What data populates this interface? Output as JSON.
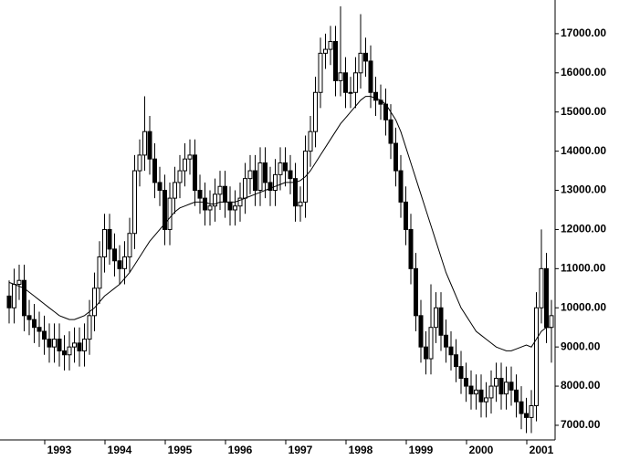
{
  "chart_data": {
    "type": "candlestick",
    "color": "#000000",
    "line_color": "#000000",
    "categories": [
      null,
      null,
      null,
      null,
      null,
      null,
      null,
      null,
      null,
      null,
      "1993",
      null,
      null,
      null,
      null,
      null,
      null,
      null,
      null,
      null,
      null,
      null,
      "1994",
      null,
      null,
      null,
      null,
      null,
      null,
      null,
      null,
      null,
      null,
      null,
      "1995",
      null,
      null,
      null,
      null,
      null,
      null,
      null,
      null,
      null,
      null,
      null,
      "1996",
      null,
      null,
      null,
      null,
      null,
      null,
      null,
      null,
      null,
      null,
      null,
      "1997",
      null,
      null,
      null,
      null,
      null,
      null,
      null,
      null,
      null,
      null,
      null,
      "1998",
      null,
      null,
      null,
      null,
      null,
      null,
      null,
      null,
      null,
      null,
      null,
      "1999",
      null,
      null,
      null,
      null,
      null,
      null,
      null,
      null,
      null,
      null,
      null,
      "2000",
      null,
      null,
      null,
      null,
      null,
      null,
      null,
      null,
      null,
      null,
      null,
      "2001",
      null,
      null
    ],
    "open": [
      10300,
      10000,
      10600,
      10700,
      9800,
      9700,
      9500,
      9400,
      9200,
      9000,
      9200,
      8900,
      8800,
      9000,
      9100,
      8900,
      9200,
      9800,
      10500,
      11300,
      12000,
      11500,
      11200,
      11000,
      11300,
      11900,
      13500,
      13900,
      14500,
      13800,
      13200,
      13000,
      12000,
      12800,
      13200,
      13500,
      13800,
      13900,
      13000,
      12800,
      12500,
      12600,
      12900,
      13100,
      12700,
      12500,
      12600,
      12800,
      13300,
      13500,
      13000,
      13700,
      13200,
      13000,
      13400,
      13700,
      13500,
      13300,
      12600,
      12700,
      14000,
      14500,
      15500,
      16500,
      16600,
      16800,
      15800,
      16000,
      15500,
      15500,
      16000,
      16500,
      16300,
      15500,
      15300,
      15200,
      14800,
      14200,
      13500,
      12700,
      12000,
      11000,
      9800,
      9000,
      8700,
      9500,
      10000,
      9300,
      9000,
      8800,
      8500,
      8200,
      8000,
      7800,
      7900,
      7600,
      7700,
      8000,
      8200,
      7800,
      8100,
      7900,
      7600,
      7300,
      7200,
      7500,
      10000,
      11000,
      9500
    ],
    "high": [
      10700,
      11000,
      11100,
      11100,
      10200,
      10100,
      9900,
      9800,
      9600,
      9600,
      9600,
      9300,
      9400,
      9500,
      9500,
      9600,
      10200,
      10900,
      11700,
      12400,
      12400,
      11900,
      11600,
      11700,
      12300,
      13900,
      14300,
      15400,
      14900,
      14200,
      13600,
      13400,
      13200,
      13600,
      13900,
      14200,
      14300,
      14300,
      13400,
      13200,
      13000,
      13300,
      13500,
      13500,
      13100,
      13000,
      13200,
      13700,
      13900,
      13900,
      14100,
      14100,
      13600,
      13800,
      14100,
      14100,
      13900,
      13700,
      13100,
      14400,
      14900,
      15900,
      16900,
      17000,
      17200,
      17200,
      17700,
      16400,
      15900,
      16400,
      17500,
      16900,
      16700,
      15900,
      15700,
      15600,
      15200,
      14600,
      13900,
      13100,
      12400,
      11400,
      10200,
      9400,
      10600,
      10400,
      10400,
      9700,
      9400,
      9200,
      8900,
      8600,
      8400,
      8300,
      8300,
      8100,
      8400,
      8600,
      8600,
      8500,
      8500,
      8300,
      8000,
      7700,
      7900,
      10400,
      12000,
      11400,
      10200
    ],
    "low": [
      9600,
      9600,
      10200,
      9400,
      9300,
      9100,
      9000,
      8800,
      8600,
      8600,
      8500,
      8400,
      8400,
      8600,
      8500,
      8500,
      8800,
      9400,
      10100,
      10900,
      11100,
      10800,
      10600,
      10600,
      10900,
      11500,
      13100,
      13500,
      13400,
      12800,
      12600,
      11600,
      11600,
      12400,
      12800,
      13100,
      13400,
      12600,
      12400,
      12100,
      12100,
      12200,
      12500,
      12300,
      12100,
      12100,
      12200,
      12400,
      12900,
      12600,
      12600,
      12800,
      12600,
      12600,
      13000,
      13100,
      12900,
      12200,
      12200,
      12300,
      13600,
      14100,
      15100,
      16100,
      16200,
      15400,
      15400,
      15100,
      15100,
      15100,
      15600,
      15900,
      15100,
      14900,
      14800,
      14400,
      13800,
      13100,
      12300,
      11600,
      10600,
      9400,
      8600,
      8300,
      8300,
      9100,
      8900,
      8600,
      8400,
      8100,
      7800,
      7600,
      7400,
      7400,
      7200,
      7200,
      7300,
      7600,
      7400,
      7400,
      7500,
      7200,
      6900,
      6800,
      6800,
      7100,
      9600,
      9100,
      8600
    ],
    "close": [
      10000,
      10600,
      10700,
      9800,
      9700,
      9500,
      9400,
      9200,
      9000,
      9200,
      8900,
      8800,
      9000,
      9100,
      8900,
      9200,
      9800,
      10500,
      11300,
      12000,
      11500,
      11200,
      11000,
      11300,
      11900,
      13500,
      13900,
      14500,
      13800,
      13200,
      13000,
      12000,
      12800,
      13200,
      13500,
      13800,
      13900,
      13000,
      12800,
      12500,
      12600,
      12900,
      13100,
      12700,
      12500,
      12600,
      12800,
      13300,
      13500,
      13000,
      13700,
      13200,
      13000,
      13400,
      13700,
      13500,
      13300,
      12600,
      12700,
      14000,
      14500,
      15500,
      16500,
      16600,
      16800,
      15800,
      16000,
      15500,
      15500,
      16000,
      16500,
      16300,
      15500,
      15300,
      15200,
      14800,
      14200,
      13500,
      12700,
      12000,
      11000,
      9800,
      9000,
      8700,
      9500,
      10000,
      9300,
      9000,
      8800,
      8500,
      8200,
      8000,
      7800,
      7900,
      7600,
      7700,
      8000,
      8200,
      7800,
      8100,
      7900,
      7600,
      7300,
      7200,
      7500,
      10000,
      11000,
      9500,
      9800
    ],
    "moving_average": [
      10650,
      10600,
      10550,
      10500,
      10400,
      10300,
      10200,
      10100,
      10000,
      9900,
      9800,
      9750,
      9700,
      9700,
      9750,
      9800,
      9900,
      10000,
      10150,
      10300,
      10400,
      10500,
      10600,
      10750,
      10900,
      11100,
      11300,
      11500,
      11700,
      11850,
      12000,
      12150,
      12300,
      12450,
      12550,
      12600,
      12650,
      12700,
      12700,
      12700,
      12650,
      12650,
      12700,
      12700,
      12700,
      12700,
      12750,
      12800,
      12850,
      12900,
      12950,
      13000,
      13050,
      13100,
      13150,
      13200,
      13200,
      13200,
      13250,
      13350,
      13500,
      13700,
      13900,
      14100,
      14300,
      14500,
      14700,
      14850,
      15000,
      15150,
      15300,
      15400,
      15400,
      15350,
      15300,
      15200,
      15000,
      14800,
      14500,
      14100,
      13700,
      13300,
      12900,
      12500,
      12100,
      11700,
      11300,
      10900,
      10600,
      10300,
      10000,
      9800,
      9600,
      9400,
      9300,
      9200,
      9100,
      9000,
      8950,
      8900,
      8900,
      8950,
      9000,
      9050,
      9000,
      9200,
      9400,
      9500,
      9500
    ],
    "ylim": [
      6440,
      17860
    ],
    "yticks": [
      {
        "value": 7000,
        "label": "7000.00"
      },
      {
        "value": 8000,
        "label": "8000.00"
      },
      {
        "value": 9000,
        "label": "9000.00"
      },
      {
        "value": 10000,
        "label": "10000.00"
      },
      {
        "value": 11000,
        "label": "11000.00"
      },
      {
        "value": 12000,
        "label": "12000.00"
      },
      {
        "value": 13000,
        "label": "13000.00"
      },
      {
        "value": 14000,
        "label": "14000.00"
      },
      {
        "value": 15000,
        "label": "15000.00"
      },
      {
        "value": 16000,
        "label": "16000.00"
      },
      {
        "value": 17000,
        "label": "17000.00"
      }
    ],
    "yaxis_side": "right"
  }
}
